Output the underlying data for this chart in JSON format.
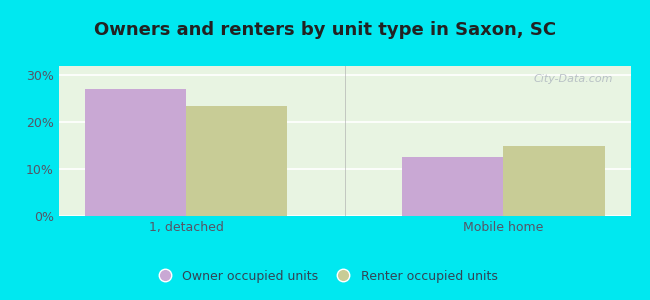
{
  "title": "Owners and renters by unit type in Saxon, SC",
  "categories": [
    "1, detached",
    "Mobile home"
  ],
  "owner_values": [
    27.0,
    12.5
  ],
  "renter_values": [
    23.5,
    15.0
  ],
  "owner_color": "#c9a8d4",
  "renter_color": "#c8cc96",
  "background_color": "#e8f4e2",
  "outer_background": "#00e8f0",
  "yticks": [
    0,
    10,
    20,
    30
  ],
  "ytick_labels": [
    "0%",
    "10%",
    "20%",
    "30%"
  ],
  "ylim": [
    0,
    32
  ],
  "bar_width": 0.32,
  "legend_owner": "Owner occupied units",
  "legend_renter": "Renter occupied units",
  "watermark": "City-Data.com",
  "title_fontsize": 13,
  "tick_fontsize": 9,
  "legend_fontsize": 9,
  "axis_label_color": "#555566"
}
